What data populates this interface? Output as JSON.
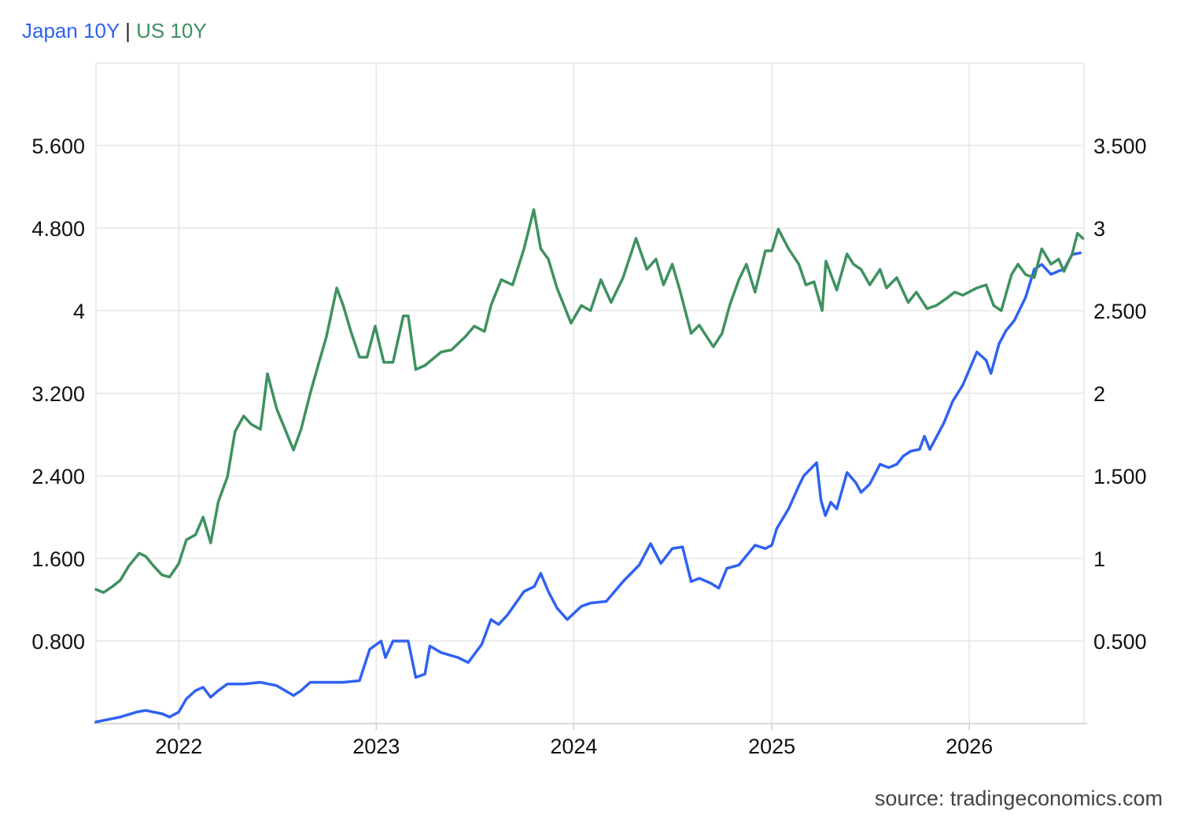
{
  "legend": {
    "separator": "|"
  },
  "source": "source: tradingeconomics.com",
  "colors": {
    "japan": "#2f62f0",
    "us": "#3f9160",
    "grid": "#e6e6e6",
    "axis": "#cccccc"
  },
  "chart_data": {
    "type": "line",
    "title": "",
    "xlabel": "",
    "grid": true,
    "legend_placement": "top-left",
    "x_range": [
      "2021-08-01",
      "2026-08-01"
    ],
    "x_ticks": [
      {
        "date": "2022-01-01",
        "label": "2022"
      },
      {
        "date": "2023-01-01",
        "label": "2023"
      },
      {
        "date": "2024-01-01",
        "label": "2024"
      },
      {
        "date": "2025-01-01",
        "label": "2025"
      },
      {
        "date": "2026-01-01",
        "label": "2026"
      }
    ],
    "left_axis": {
      "range": [
        0,
        6.4
      ],
      "ticks": [
        {
          "v": 0.8,
          "label": "0.800"
        },
        {
          "v": 1.6,
          "label": "1.600"
        },
        {
          "v": 2.4,
          "label": "2.400"
        },
        {
          "v": 3.2,
          "label": "3.200"
        },
        {
          "v": 4.0,
          "label": "4"
        },
        {
          "v": 4.8,
          "label": "4.800"
        },
        {
          "v": 5.6,
          "label": "5.600"
        }
      ]
    },
    "right_axis": {
      "range": [
        0,
        4.0
      ],
      "ticks": [
        {
          "v": 0.5,
          "label": "0.500"
        },
        {
          "v": 1.0,
          "label": "1"
        },
        {
          "v": 1.5,
          "label": "1.500"
        },
        {
          "v": 2.0,
          "label": "2"
        },
        {
          "v": 2.5,
          "label": "2.500"
        },
        {
          "v": 3.0,
          "label": "3"
        },
        {
          "v": 3.5,
          "label": "3.500"
        }
      ]
    },
    "series": [
      {
        "name": "Japan 10Y",
        "axis": "right",
        "color": "#2f62f0",
        "points": [
          [
            "2021-08-01",
            0.01
          ],
          [
            "2021-09-15",
            0.04
          ],
          [
            "2021-10-15",
            0.07
          ],
          [
            "2021-11-01",
            0.08
          ],
          [
            "2021-11-15",
            0.07
          ],
          [
            "2021-12-01",
            0.06
          ],
          [
            "2021-12-15",
            0.04
          ],
          [
            "2022-01-01",
            0.07
          ],
          [
            "2022-01-15",
            0.15
          ],
          [
            "2022-02-01",
            0.2
          ],
          [
            "2022-02-15",
            0.22
          ],
          [
            "2022-03-01",
            0.16
          ],
          [
            "2022-03-15",
            0.2
          ],
          [
            "2022-04-01",
            0.24
          ],
          [
            "2022-05-01",
            0.24
          ],
          [
            "2022-06-01",
            0.25
          ],
          [
            "2022-07-01",
            0.23
          ],
          [
            "2022-08-01",
            0.17
          ],
          [
            "2022-08-15",
            0.2
          ],
          [
            "2022-09-01",
            0.25
          ],
          [
            "2022-10-01",
            0.25
          ],
          [
            "2022-11-01",
            0.25
          ],
          [
            "2022-12-01",
            0.26
          ],
          [
            "2022-12-20",
            0.45
          ],
          [
            "2023-01-10",
            0.5
          ],
          [
            "2023-01-18",
            0.4
          ],
          [
            "2023-02-01",
            0.5
          ],
          [
            "2023-03-01",
            0.5
          ],
          [
            "2023-03-15",
            0.28
          ],
          [
            "2023-04-01",
            0.3
          ],
          [
            "2023-04-10",
            0.47
          ],
          [
            "2023-05-01",
            0.43
          ],
          [
            "2023-06-01",
            0.4
          ],
          [
            "2023-06-20",
            0.37
          ],
          [
            "2023-07-15",
            0.48
          ],
          [
            "2023-08-01",
            0.63
          ],
          [
            "2023-08-15",
            0.6
          ],
          [
            "2023-09-01",
            0.66
          ],
          [
            "2023-10-01",
            0.8
          ],
          [
            "2023-10-20",
            0.83
          ],
          [
            "2023-11-01",
            0.91
          ],
          [
            "2023-11-15",
            0.8
          ],
          [
            "2023-12-01",
            0.7
          ],
          [
            "2023-12-20",
            0.63
          ],
          [
            "2024-01-15",
            0.71
          ],
          [
            "2024-02-01",
            0.73
          ],
          [
            "2024-03-01",
            0.74
          ],
          [
            "2024-04-01",
            0.86
          ],
          [
            "2024-05-01",
            0.96
          ],
          [
            "2024-05-22",
            1.09
          ],
          [
            "2024-06-10",
            0.97
          ],
          [
            "2024-07-01",
            1.06
          ],
          [
            "2024-07-20",
            1.07
          ],
          [
            "2024-08-05",
            0.86
          ],
          [
            "2024-08-20",
            0.88
          ],
          [
            "2024-09-10",
            0.85
          ],
          [
            "2024-09-25",
            0.82
          ],
          [
            "2024-10-10",
            0.94
          ],
          [
            "2024-11-01",
            0.96
          ],
          [
            "2024-12-01",
            1.08
          ],
          [
            "2024-12-20",
            1.06
          ],
          [
            "2025-01-01",
            1.08
          ],
          [
            "2025-01-10",
            1.18
          ],
          [
            "2025-02-01",
            1.3
          ],
          [
            "2025-02-20",
            1.44
          ],
          [
            "2025-03-01",
            1.5
          ],
          [
            "2025-03-25",
            1.58
          ],
          [
            "2025-04-02",
            1.35
          ],
          [
            "2025-04-10",
            1.26
          ],
          [
            "2025-04-20",
            1.34
          ],
          [
            "2025-05-01",
            1.3
          ],
          [
            "2025-05-20",
            1.52
          ],
          [
            "2025-06-05",
            1.46
          ],
          [
            "2025-06-15",
            1.4
          ],
          [
            "2025-07-01",
            1.45
          ],
          [
            "2025-07-20",
            1.57
          ],
          [
            "2025-08-05",
            1.55
          ],
          [
            "2025-08-20",
            1.57
          ],
          [
            "2025-09-01",
            1.62
          ],
          [
            "2025-09-15",
            1.65
          ],
          [
            "2025-10-01",
            1.66
          ],
          [
            "2025-10-10",
            1.74
          ],
          [
            "2025-10-20",
            1.66
          ],
          [
            "2025-11-15",
            1.82
          ],
          [
            "2025-12-01",
            1.95
          ],
          [
            "2025-12-20",
            2.05
          ],
          [
            "2026-01-15",
            2.25
          ],
          [
            "2026-02-01",
            2.2
          ],
          [
            "2026-02-10",
            2.12
          ],
          [
            "2026-02-25",
            2.3
          ],
          [
            "2026-03-10",
            2.38
          ],
          [
            "2026-03-25",
            2.44
          ],
          [
            "2026-04-15",
            2.58
          ],
          [
            "2026-05-01",
            2.75
          ],
          [
            "2026-05-15",
            2.78
          ],
          [
            "2026-06-01",
            2.72
          ],
          [
            "2026-06-15",
            2.74
          ],
          [
            "2026-06-25",
            2.75
          ],
          [
            "2026-07-10",
            2.84
          ],
          [
            "2026-07-25",
            2.85
          ]
        ]
      },
      {
        "name": "US 10Y",
        "axis": "left",
        "color": "#3f9160",
        "points": [
          [
            "2021-08-01",
            1.3
          ],
          [
            "2021-08-15",
            1.27
          ],
          [
            "2021-09-01",
            1.33
          ],
          [
            "2021-09-15",
            1.39
          ],
          [
            "2021-10-01",
            1.53
          ],
          [
            "2021-10-20",
            1.65
          ],
          [
            "2021-11-01",
            1.62
          ],
          [
            "2021-11-15",
            1.53
          ],
          [
            "2021-12-01",
            1.44
          ],
          [
            "2021-12-15",
            1.42
          ],
          [
            "2022-01-01",
            1.55
          ],
          [
            "2022-01-15",
            1.78
          ],
          [
            "2022-02-01",
            1.83
          ],
          [
            "2022-02-15",
            2.0
          ],
          [
            "2022-03-01",
            1.75
          ],
          [
            "2022-03-15",
            2.15
          ],
          [
            "2022-04-01",
            2.39
          ],
          [
            "2022-04-15",
            2.83
          ],
          [
            "2022-05-01",
            2.98
          ],
          [
            "2022-05-15",
            2.9
          ],
          [
            "2022-06-01",
            2.85
          ],
          [
            "2022-06-14",
            3.39
          ],
          [
            "2022-07-01",
            3.05
          ],
          [
            "2022-08-01",
            2.65
          ],
          [
            "2022-08-15",
            2.85
          ],
          [
            "2022-09-01",
            3.2
          ],
          [
            "2022-09-15",
            3.46
          ],
          [
            "2022-10-01",
            3.75
          ],
          [
            "2022-10-20",
            4.22
          ],
          [
            "2022-11-01",
            4.05
          ],
          [
            "2022-11-15",
            3.8
          ],
          [
            "2022-12-01",
            3.55
          ],
          [
            "2022-12-15",
            3.55
          ],
          [
            "2022-12-30",
            3.85
          ],
          [
            "2023-01-15",
            3.5
          ],
          [
            "2023-02-01",
            3.5
          ],
          [
            "2023-02-20",
            3.95
          ],
          [
            "2023-03-01",
            3.95
          ],
          [
            "2023-03-15",
            3.43
          ],
          [
            "2023-04-01",
            3.47
          ],
          [
            "2023-05-01",
            3.6
          ],
          [
            "2023-05-20",
            3.62
          ],
          [
            "2023-06-15",
            3.75
          ],
          [
            "2023-07-01",
            3.85
          ],
          [
            "2023-07-20",
            3.8
          ],
          [
            "2023-08-01",
            4.05
          ],
          [
            "2023-08-20",
            4.3
          ],
          [
            "2023-09-10",
            4.25
          ],
          [
            "2023-10-01",
            4.6
          ],
          [
            "2023-10-19",
            4.98
          ],
          [
            "2023-11-01",
            4.6
          ],
          [
            "2023-11-15",
            4.5
          ],
          [
            "2023-12-01",
            4.22
          ],
          [
            "2023-12-27",
            3.88
          ],
          [
            "2024-01-15",
            4.05
          ],
          [
            "2024-02-01",
            4.0
          ],
          [
            "2024-02-20",
            4.3
          ],
          [
            "2024-03-10",
            4.08
          ],
          [
            "2024-04-01",
            4.32
          ],
          [
            "2024-04-25",
            4.7
          ],
          [
            "2024-05-15",
            4.4
          ],
          [
            "2024-06-01",
            4.5
          ],
          [
            "2024-06-15",
            4.25
          ],
          [
            "2024-07-01",
            4.45
          ],
          [
            "2024-07-15",
            4.2
          ],
          [
            "2024-08-05",
            3.78
          ],
          [
            "2024-08-20",
            3.86
          ],
          [
            "2024-09-15",
            3.65
          ],
          [
            "2024-10-01",
            3.78
          ],
          [
            "2024-10-15",
            4.05
          ],
          [
            "2024-11-01",
            4.3
          ],
          [
            "2024-11-15",
            4.45
          ],
          [
            "2024-12-01",
            4.18
          ],
          [
            "2024-12-20",
            4.58
          ],
          [
            "2025-01-01",
            4.58
          ],
          [
            "2025-01-13",
            4.79
          ],
          [
            "2025-02-01",
            4.6
          ],
          [
            "2025-02-20",
            4.45
          ],
          [
            "2025-03-05",
            4.25
          ],
          [
            "2025-03-20",
            4.28
          ],
          [
            "2025-04-04",
            4.0
          ],
          [
            "2025-04-11",
            4.48
          ],
          [
            "2025-05-01",
            4.2
          ],
          [
            "2025-05-20",
            4.55
          ],
          [
            "2025-06-01",
            4.45
          ],
          [
            "2025-06-15",
            4.4
          ],
          [
            "2025-07-01",
            4.25
          ],
          [
            "2025-07-20",
            4.4
          ],
          [
            "2025-08-01",
            4.22
          ],
          [
            "2025-08-20",
            4.32
          ],
          [
            "2025-09-10",
            4.08
          ],
          [
            "2025-09-25",
            4.18
          ],
          [
            "2025-10-15",
            4.02
          ],
          [
            "2025-11-01",
            4.05
          ],
          [
            "2025-11-20",
            4.12
          ],
          [
            "2025-12-05",
            4.18
          ],
          [
            "2025-12-20",
            4.15
          ],
          [
            "2026-01-15",
            4.22
          ],
          [
            "2026-02-01",
            4.25
          ],
          [
            "2026-02-15",
            4.05
          ],
          [
            "2026-03-01",
            4.0
          ],
          [
            "2026-03-20",
            4.35
          ],
          [
            "2026-04-01",
            4.45
          ],
          [
            "2026-04-15",
            4.35
          ],
          [
            "2026-05-01",
            4.32
          ],
          [
            "2026-05-15",
            4.6
          ],
          [
            "2026-06-01",
            4.45
          ],
          [
            "2026-06-15",
            4.5
          ],
          [
            "2026-06-25",
            4.38
          ],
          [
            "2026-07-10",
            4.55
          ],
          [
            "2026-07-20",
            4.75
          ],
          [
            "2026-07-30",
            4.7
          ]
        ]
      }
    ]
  }
}
